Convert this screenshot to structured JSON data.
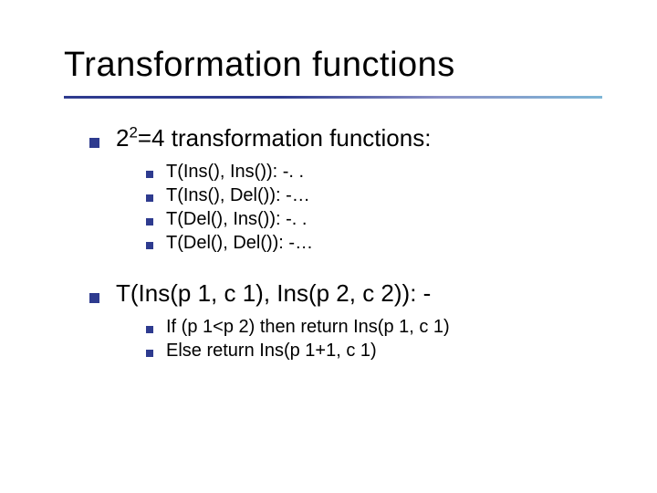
{
  "colors": {
    "bullet_color": "#2e3b8f",
    "text_color": "#000000",
    "background": "#ffffff",
    "underline_gradient_start": "#2e3b8f",
    "underline_gradient_mid": "#8a90c6",
    "underline_gradient_end": "#7db6d6"
  },
  "typography": {
    "title_fontsize": 38,
    "l1_fontsize": 26,
    "l2_fontsize": 20,
    "font_family": "Verdana"
  },
  "title": "Transformation functions",
  "items": [
    {
      "base": "2",
      "exp": "2",
      "rest": "=4 transformation functions:",
      "subitems": [
        "T(Ins(), Ins()): -. .",
        "T(Ins(), Del()): -…",
        "T(Del(), Ins()): -. .",
        "T(Del(), Del()): -…"
      ]
    },
    {
      "text": "T(Ins(p 1, c 1), Ins(p 2, c 2)): -",
      "subitems": [
        "If (p 1<p 2) then return Ins(p 1, c 1)",
        "Else return Ins(p 1+1, c 1)"
      ]
    }
  ]
}
